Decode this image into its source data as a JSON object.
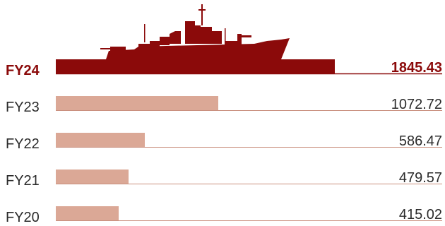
{
  "chart_data": {
    "type": "bar",
    "orientation": "horizontal",
    "categories": [
      "FY24",
      "FY23",
      "FY22",
      "FY21",
      "FY20"
    ],
    "values": [
      1845.43,
      1072.72,
      586.47,
      479.57,
      415.02
    ],
    "value_labels": [
      "1845.43",
      "1072.72",
      "586.47",
      "479.57",
      "415.02"
    ],
    "highlight_index": 0,
    "highlight_color": "#8b0a0a",
    "bar_color": "#dba896",
    "divider_color": "#c98f7e",
    "text_color": "#2b2b2b",
    "highlight_icon": "warship-silhouette-icon",
    "title": "",
    "xlabel": "",
    "ylabel": "",
    "grid": false,
    "legend": "none"
  }
}
